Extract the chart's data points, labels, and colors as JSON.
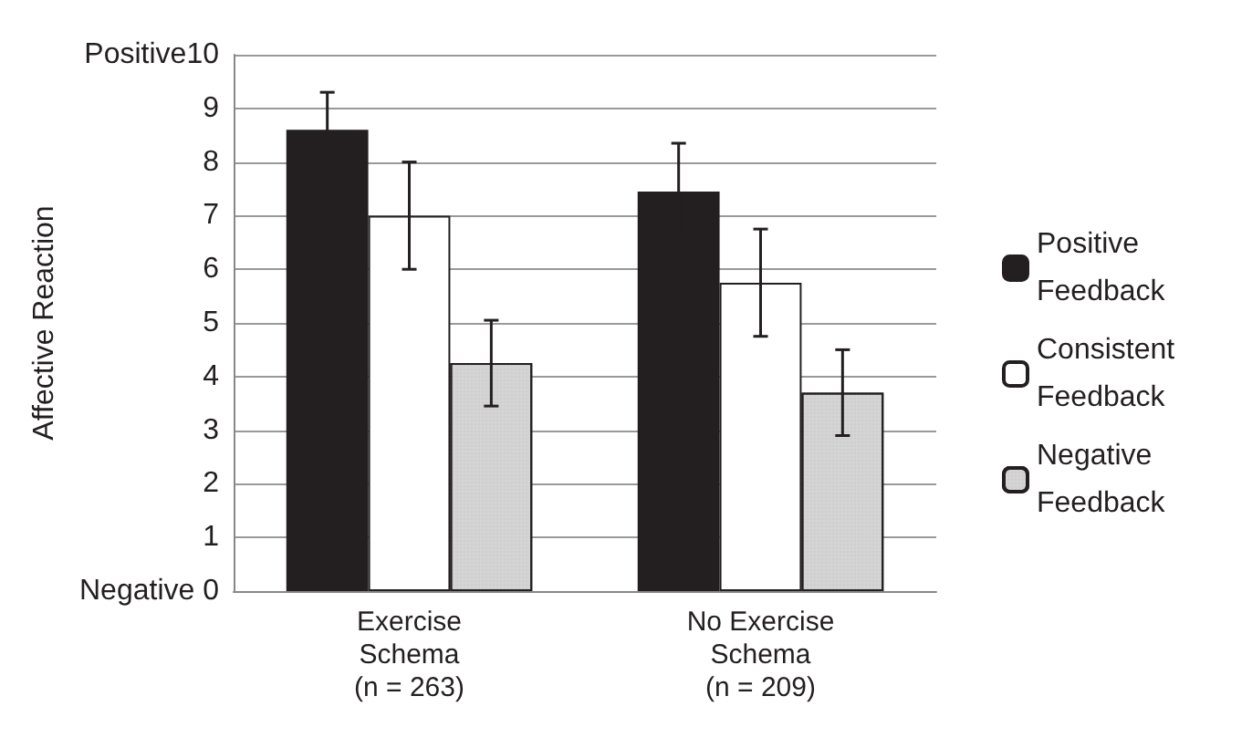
{
  "chart_data": {
    "type": "bar",
    "ylabel": "Affective Reaction",
    "categories": [
      "Exercise\nSchema\n(n = 263)",
      "No Exercise\nSchema\n(n = 209)"
    ],
    "series": [
      {
        "name": "Positive Feedback",
        "color": "#231f20",
        "values": [
          8.6,
          7.45
        ],
        "errors": [
          0.7,
          0.9
        ]
      },
      {
        "name": "Consistent Feedback",
        "color": "#ffffff",
        "values": [
          7.0,
          5.75
        ],
        "errors": [
          1.0,
          1.0
        ]
      },
      {
        "name": "Negative Feedback",
        "color": "#d4d4d4",
        "values": [
          4.25,
          3.7
        ],
        "errors": [
          0.8,
          0.8
        ]
      }
    ],
    "ylim": [
      0,
      10
    ],
    "yticks": [
      {
        "value": 0,
        "label": "Negative 0"
      },
      1,
      2,
      3,
      4,
      5,
      6,
      7,
      8,
      9,
      {
        "value": 10,
        "label": "Positive10"
      }
    ],
    "grid": "y",
    "legend": "right"
  }
}
